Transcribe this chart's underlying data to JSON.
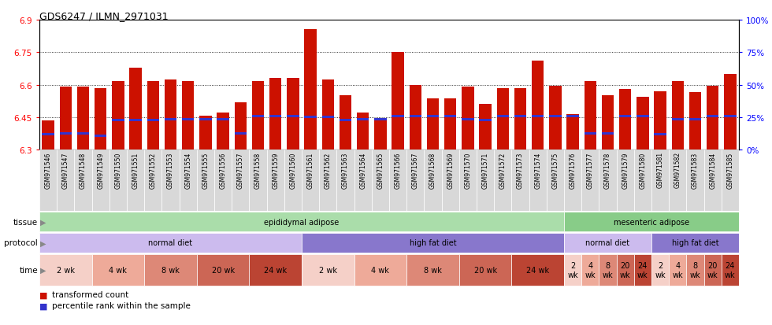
{
  "title": "GDS6247 / ILMN_2971031",
  "samples": [
    "GSM971546",
    "GSM971547",
    "GSM971548",
    "GSM971549",
    "GSM971550",
    "GSM971551",
    "GSM971552",
    "GSM971553",
    "GSM971554",
    "GSM971555",
    "GSM971556",
    "GSM971557",
    "GSM971558",
    "GSM971559",
    "GSM971560",
    "GSM971561",
    "GSM971562",
    "GSM971563",
    "GSM971564",
    "GSM971565",
    "GSM971566",
    "GSM971567",
    "GSM971568",
    "GSM971569",
    "GSM971570",
    "GSM971571",
    "GSM971572",
    "GSM971573",
    "GSM971574",
    "GSM971575",
    "GSM971576",
    "GSM971577",
    "GSM971578",
    "GSM971579",
    "GSM971580",
    "GSM971581",
    "GSM971582",
    "GSM971583",
    "GSM971584",
    "GSM971585"
  ],
  "bar_values": [
    6.435,
    6.59,
    6.59,
    6.585,
    6.615,
    6.68,
    6.615,
    6.625,
    6.615,
    6.455,
    6.47,
    6.52,
    6.615,
    6.63,
    6.63,
    6.855,
    6.625,
    6.55,
    6.47,
    6.445,
    6.75,
    6.6,
    6.535,
    6.535,
    6.59,
    6.51,
    6.585,
    6.585,
    6.71,
    6.595,
    6.465,
    6.615,
    6.55,
    6.58,
    6.545,
    6.57,
    6.615,
    6.565,
    6.595,
    6.65
  ],
  "percentile_values": [
    6.37,
    6.375,
    6.375,
    6.365,
    6.435,
    6.435,
    6.435,
    6.44,
    6.44,
    6.44,
    6.44,
    6.375,
    6.455,
    6.455,
    6.455,
    6.45,
    6.45,
    6.435,
    6.44,
    6.44,
    6.455,
    6.455,
    6.455,
    6.455,
    6.44,
    6.435,
    6.455,
    6.455,
    6.455,
    6.455,
    6.455,
    6.375,
    6.375,
    6.455,
    6.455,
    6.37,
    6.44,
    6.44,
    6.455,
    6.455
  ],
  "ymin": 6.3,
  "ymax": 6.9,
  "yticks": [
    6.3,
    6.45,
    6.6,
    6.75,
    6.9
  ],
  "right_yticks": [
    0,
    25,
    50,
    75,
    100
  ],
  "bar_color": "#cc1100",
  "percentile_color": "#3333cc",
  "tissue_row": {
    "label": "tissue",
    "groups": [
      {
        "text": "epididymal adipose",
        "start": 0,
        "end": 29,
        "color": "#aaddaa"
      },
      {
        "text": "mesenteric adipose",
        "start": 30,
        "end": 39,
        "color": "#88cc88"
      }
    ]
  },
  "protocol_row": {
    "label": "protocol",
    "groups": [
      {
        "text": "normal diet",
        "start": 0,
        "end": 14,
        "color": "#ccbbee"
      },
      {
        "text": "high fat diet",
        "start": 15,
        "end": 29,
        "color": "#8877cc"
      },
      {
        "text": "normal diet",
        "start": 30,
        "end": 34,
        "color": "#ccbbee"
      },
      {
        "text": "high fat diet",
        "start": 35,
        "end": 39,
        "color": "#8877cc"
      }
    ]
  },
  "time_row": {
    "label": "time",
    "groups": [
      {
        "text": "2 wk",
        "start": 0,
        "end": 2,
        "color": "#f5d0c8"
      },
      {
        "text": "4 wk",
        "start": 3,
        "end": 5,
        "color": "#eeaa99"
      },
      {
        "text": "8 wk",
        "start": 6,
        "end": 8,
        "color": "#dd8877"
      },
      {
        "text": "20 wk",
        "start": 9,
        "end": 11,
        "color": "#cc6655"
      },
      {
        "text": "24 wk",
        "start": 12,
        "end": 14,
        "color": "#bb4433"
      },
      {
        "text": "2 wk",
        "start": 15,
        "end": 17,
        "color": "#f5d0c8"
      },
      {
        "text": "4 wk",
        "start": 18,
        "end": 20,
        "color": "#eeaa99"
      },
      {
        "text": "8 wk",
        "start": 21,
        "end": 23,
        "color": "#dd8877"
      },
      {
        "text": "20 wk",
        "start": 24,
        "end": 26,
        "color": "#cc6655"
      },
      {
        "text": "24 wk",
        "start": 27,
        "end": 29,
        "color": "#bb4433"
      },
      {
        "text": "2\nwk",
        "start": 30,
        "end": 30,
        "color": "#f5d0c8"
      },
      {
        "text": "4\nwk",
        "start": 31,
        "end": 31,
        "color": "#eeaa99"
      },
      {
        "text": "8\nwk",
        "start": 32,
        "end": 32,
        "color": "#dd8877"
      },
      {
        "text": "20\nwk",
        "start": 33,
        "end": 33,
        "color": "#cc6655"
      },
      {
        "text": "24\nwk",
        "start": 34,
        "end": 34,
        "color": "#bb4433"
      },
      {
        "text": "2\nwk",
        "start": 35,
        "end": 35,
        "color": "#f5d0c8"
      },
      {
        "text": "4\nwk",
        "start": 36,
        "end": 36,
        "color": "#eeaa99"
      },
      {
        "text": "8\nwk",
        "start": 37,
        "end": 37,
        "color": "#dd8877"
      },
      {
        "text": "20\nwk",
        "start": 38,
        "end": 38,
        "color": "#cc6655"
      },
      {
        "text": "24\nwk",
        "start": 39,
        "end": 39,
        "color": "#bb4433"
      }
    ]
  },
  "legend": [
    {
      "label": "transformed count",
      "color": "#cc1100"
    },
    {
      "label": "percentile rank within the sample",
      "color": "#3333cc"
    }
  ]
}
